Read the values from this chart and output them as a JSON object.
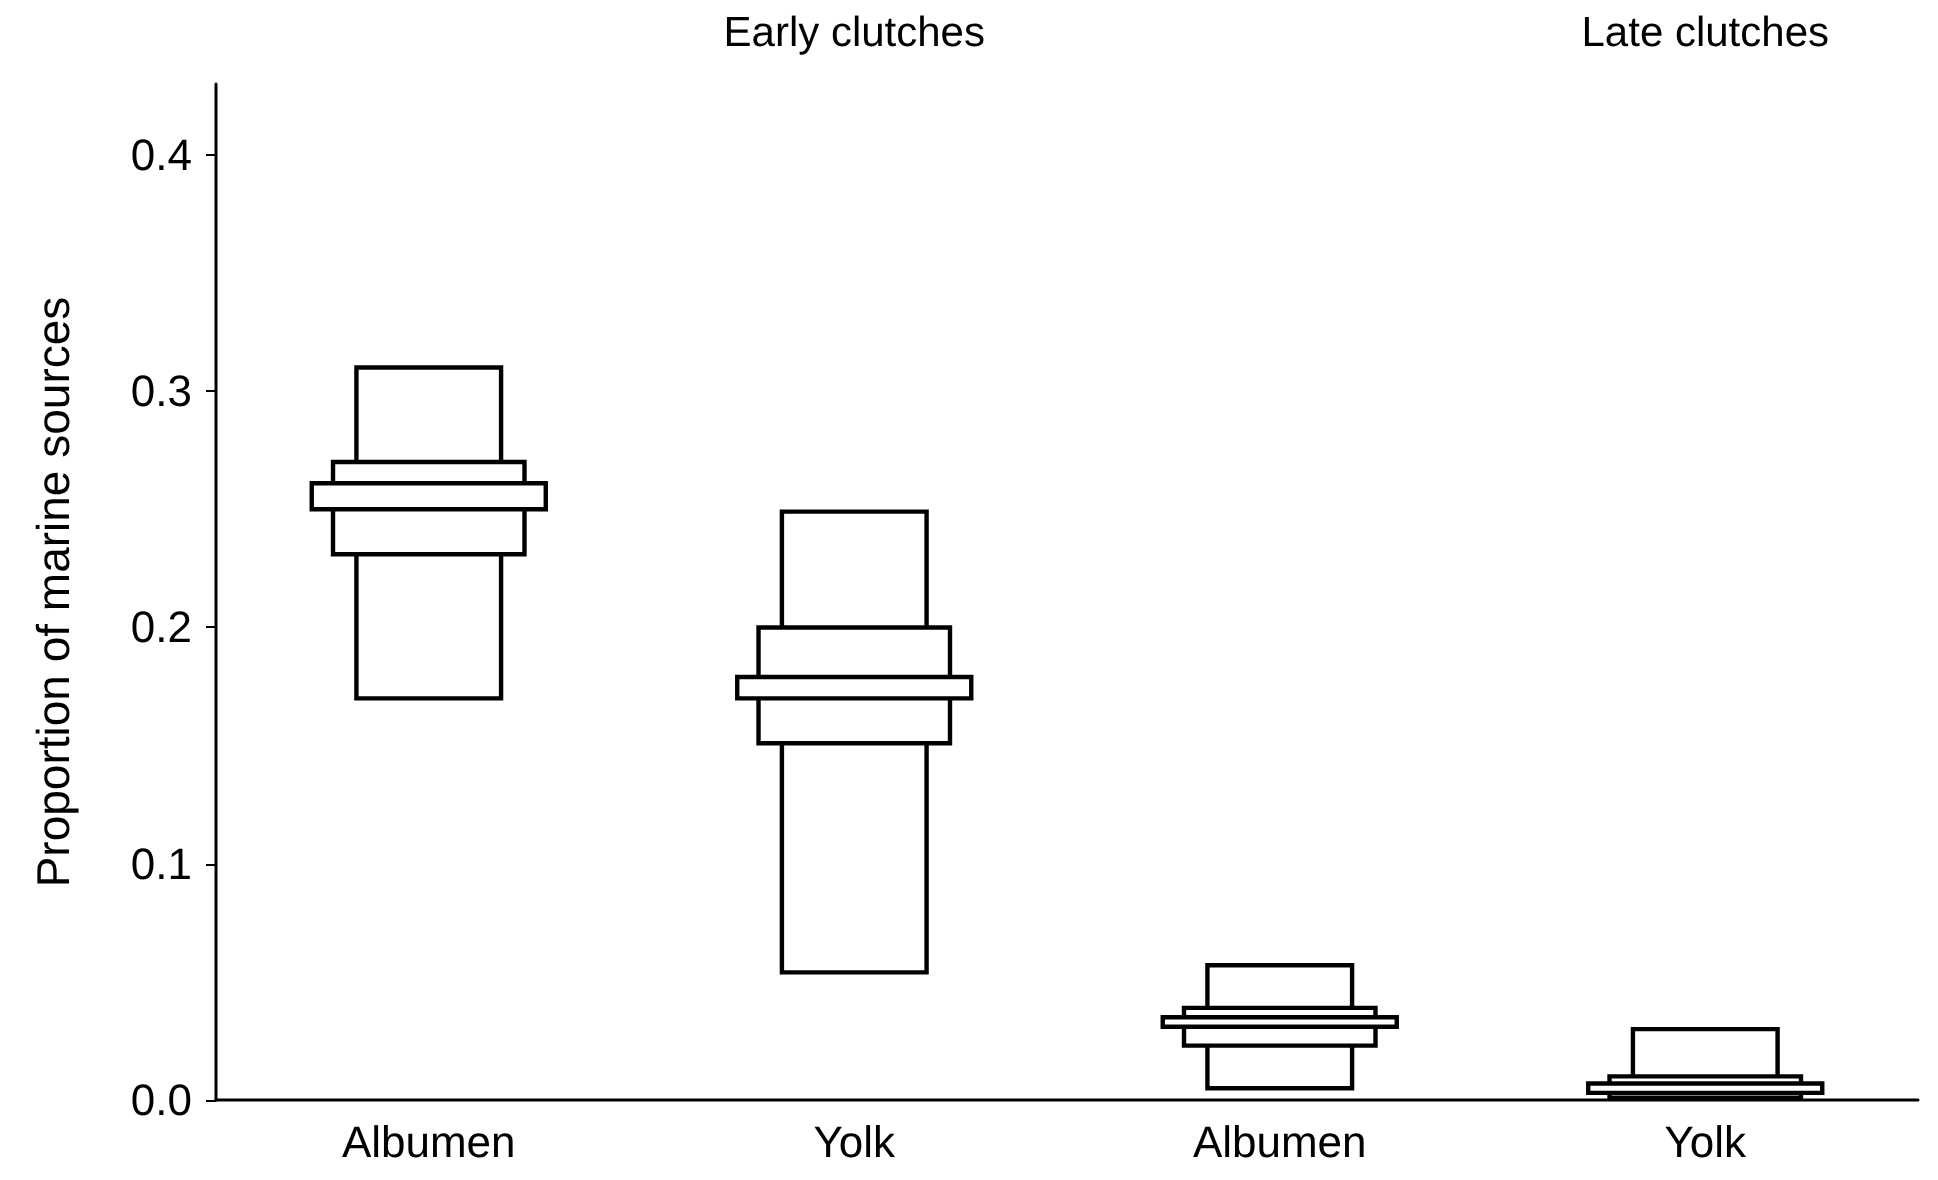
{
  "chart_data": {
    "type": "bar",
    "ylabel": "Proportion of marine sources",
    "annotations": [
      "Early clutches",
      "Late clutches"
    ],
    "categories": [
      "Albumen",
      "Yolk",
      "Albumen",
      "Yolk"
    ],
    "series": [
      {
        "color": "#000000",
        "base": [
          0.17,
          0.054,
          0.005,
          0.001
        ],
        "values": [
          0.14,
          0.195,
          0.052,
          0.029
        ]
      },
      {
        "color": "#000000",
        "base": [
          0.231,
          0.151,
          0.023,
          0.001
        ],
        "values": [
          0.039,
          0.049,
          0.016,
          0.009
        ]
      },
      {
        "color": "#000000",
        "base": [
          0.25,
          0.17,
          0.031,
          0.003
        ],
        "values": [
          0.011,
          0.009,
          0.004,
          0.004
        ]
      }
    ],
    "ylim": [
      0,
      0.43
    ],
    "yticks": [
      {
        "value": 0,
        "label": "0.0"
      },
      {
        "value": 0.1,
        "label": "0.1"
      },
      {
        "value": 0.2,
        "label": "0.2"
      },
      {
        "value": 0.3,
        "label": "0.3"
      },
      {
        "value": 0.4,
        "label": "0.4"
      }
    ],
    "grid": false
  }
}
